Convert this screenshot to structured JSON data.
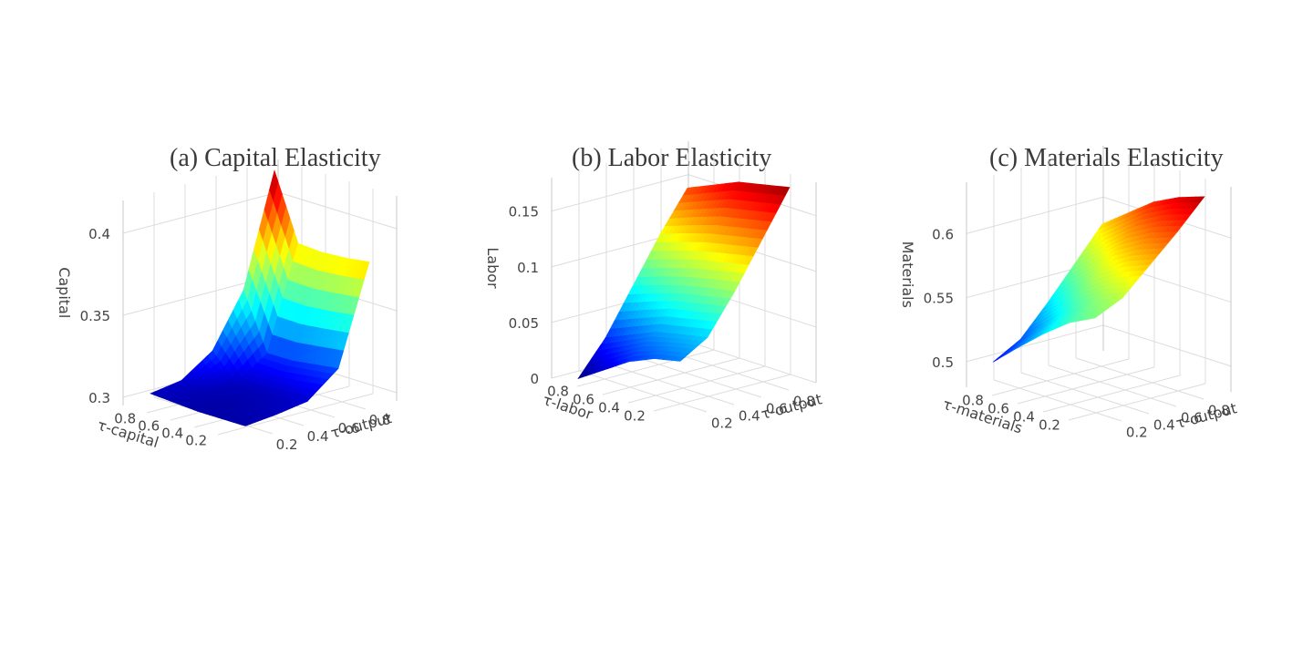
{
  "colors": {
    "colorscale": [
      "#00007f",
      "#0000ff",
      "#007fff",
      "#00ffff",
      "#7fff7f",
      "#ffff00",
      "#ff7f00",
      "#ff0000",
      "#7f0000"
    ],
    "grid": "#dcdcdc",
    "text": "#444444"
  },
  "chart_data": [
    {
      "type": "surface",
      "title": "(a) Capital Elasticity",
      "zlabel": "Capital",
      "xlabel": "τ-capital",
      "ylabel": "τ-output",
      "x_ticks": [
        "0.2",
        "0.4",
        "0.6",
        "0.8"
      ],
      "y_ticks": [
        "0.2",
        "0.4",
        "0.6",
        "0.8"
      ],
      "z_ticks": [
        "0.3",
        "0.35",
        "0.4"
      ],
      "zlim": [
        0.295,
        0.42
      ],
      "x": [
        0.1,
        0.3,
        0.5,
        0.7,
        0.9
      ],
      "y": [
        0.1,
        0.3,
        0.5,
        0.7,
        0.9
      ],
      "z": [
        [
          0.3,
          0.302,
          0.305,
          0.32,
          0.38
        ],
        [
          0.3,
          0.301,
          0.303,
          0.318,
          0.378
        ],
        [
          0.3,
          0.3,
          0.302,
          0.316,
          0.377
        ],
        [
          0.301,
          0.301,
          0.303,
          0.316,
          0.378
        ],
        [
          0.302,
          0.305,
          0.318,
          0.35,
          0.418
        ]
      ]
    },
    {
      "type": "surface",
      "title": "(b) Labor Elasticity",
      "zlabel": "Labor",
      "xlabel": "τ-labor",
      "ylabel": "τ-output",
      "x_ticks": [
        "0.2",
        "0.4",
        "0.6",
        "0.8"
      ],
      "y_ticks": [
        "0.2",
        "0.4",
        "0.6",
        "0.8"
      ],
      "z_ticks": [
        "0",
        "0.05",
        "0.1",
        "0.15"
      ],
      "zlim": [
        0,
        0.18
      ],
      "x": [
        0.1,
        0.3,
        0.5,
        0.7,
        0.9
      ],
      "y": [
        0.1,
        0.3,
        0.5,
        0.7,
        0.9
      ],
      "z": [
        [
          0.045,
          0.06,
          0.095,
          0.135,
          0.175
        ],
        [
          0.04,
          0.055,
          0.09,
          0.13,
          0.17
        ],
        [
          0.03,
          0.05,
          0.085,
          0.125,
          0.165
        ],
        [
          0.015,
          0.04,
          0.078,
          0.118,
          0.155
        ],
        [
          0.0,
          0.03,
          0.07,
          0.11,
          0.145
        ]
      ]
    },
    {
      "type": "surface",
      "title": "(c) Materials Elasticity",
      "zlabel": "Materials",
      "xlabel": "τ-materials",
      "ylabel": "τ-output",
      "x_ticks": [
        "0.2",
        "0.4",
        "0.6",
        "0.8"
      ],
      "y_ticks": [
        "0.2",
        "0.4",
        "0.6",
        "0.8"
      ],
      "z_ticks": [
        "0.5",
        "0.55",
        "0.6"
      ],
      "zlim": [
        0.48,
        0.64
      ],
      "x": [
        0.1,
        0.3,
        0.5,
        0.7,
        0.9
      ],
      "y": [
        0.1,
        0.3,
        0.5,
        0.7,
        0.9
      ],
      "z": [
        [
          0.56,
          0.57,
          0.59,
          0.61,
          0.632
        ],
        [
          0.55,
          0.562,
          0.582,
          0.603,
          0.625
        ],
        [
          0.535,
          0.548,
          0.57,
          0.592,
          0.615
        ],
        [
          0.518,
          0.53,
          0.552,
          0.576,
          0.6
        ],
        [
          0.5,
          0.512,
          0.535,
          0.56,
          0.585
        ]
      ]
    }
  ]
}
